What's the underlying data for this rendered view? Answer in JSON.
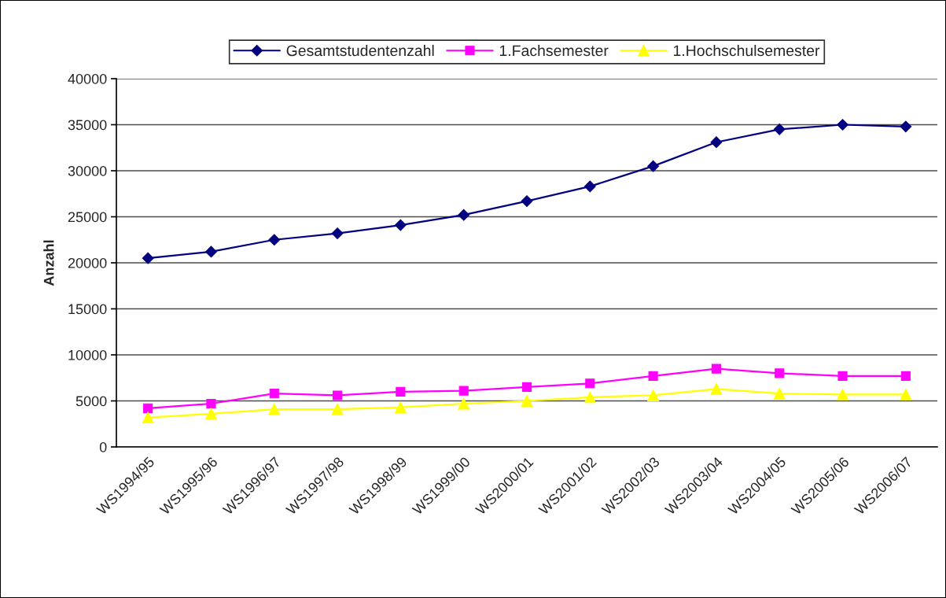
{
  "chart_data": {
    "type": "line",
    "ylabel": "Anzahl",
    "categories": [
      "WS1994/95",
      "WS1995/96",
      "WS1996/97",
      "WS1997/98",
      "WS1998/99",
      "WS1999/00",
      "WS2000/01",
      "WS2001/02",
      "WS2002/03",
      "WS2003/04",
      "WS2004/05",
      "WS2005/06",
      "WS2006/07"
    ],
    "series": [
      {
        "name": "Gesamtstudentenzahl",
        "color": "#000080",
        "marker": "diamond",
        "values": [
          20500,
          21200,
          22500,
          23200,
          24100,
          25200,
          26700,
          28300,
          30500,
          33100,
          34500,
          35000,
          34800
        ]
      },
      {
        "name": "1.Fachsemester",
        "color": "#ff00ff",
        "marker": "square",
        "values": [
          4200,
          4700,
          5800,
          5600,
          6000,
          6100,
          6500,
          6900,
          7700,
          8500,
          8000,
          7700,
          7700
        ]
      },
      {
        "name": "1.Hochschulsemester",
        "color": "#ffff00",
        "marker": "triangle",
        "values": [
          3200,
          3600,
          4100,
          4100,
          4300,
          4700,
          5000,
          5400,
          5600,
          6300,
          5800,
          5700,
          5700
        ]
      }
    ],
    "ylim": [
      0,
      40000
    ],
    "yticks": [
      0,
      5000,
      10000,
      15000,
      20000,
      25000,
      30000,
      35000,
      40000
    ],
    "grid": "y",
    "legend": "top",
    "line_style": "solid"
  }
}
